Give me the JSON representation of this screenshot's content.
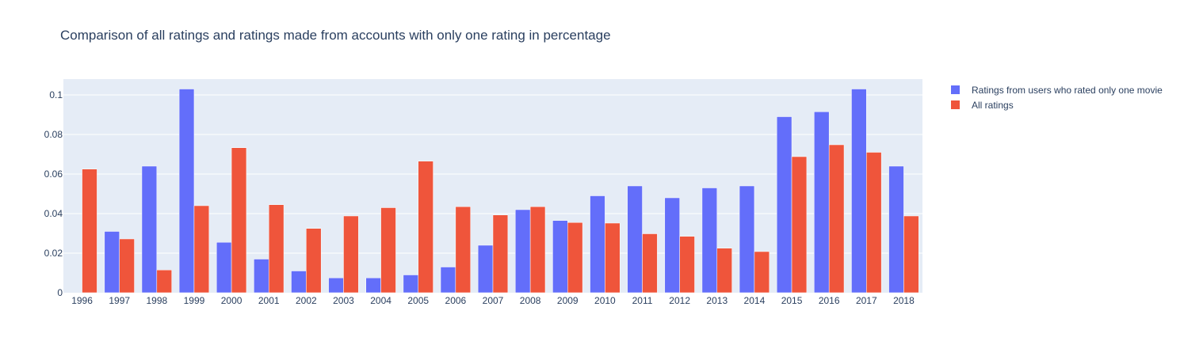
{
  "chart_data": {
    "type": "bar",
    "title": "Comparison of all ratings and ratings made from accounts with only one rating in percentage",
    "xlabel": "",
    "ylabel": "",
    "categories": [
      "1996",
      "1997",
      "1998",
      "1999",
      "2000",
      "2001",
      "2002",
      "2003",
      "2004",
      "2005",
      "2006",
      "2007",
      "2008",
      "2009",
      "2010",
      "2011",
      "2012",
      "2013",
      "2014",
      "2015",
      "2016",
      "2017",
      "2018"
    ],
    "ylim": [
      0,
      0.108
    ],
    "yticks": [
      0,
      0.02,
      0.04,
      0.06,
      0.08,
      0.1
    ],
    "ytick_labels": [
      "0",
      "0.02",
      "0.04",
      "0.06",
      "0.08",
      "0.1"
    ],
    "grid": true,
    "legend_position": "top-right",
    "plot_background": "#e5ecf6",
    "series": [
      {
        "name": "Ratings from users who rated only one movie",
        "color": "#636efa",
        "values": [
          0,
          0.031,
          0.064,
          0.103,
          0.0255,
          0.017,
          0.011,
          0.0075,
          0.0075,
          0.009,
          0.013,
          0.024,
          0.042,
          0.0365,
          0.049,
          0.054,
          0.048,
          0.053,
          0.054,
          0.089,
          0.0915,
          0.103,
          0.064
        ]
      },
      {
        "name": "All ratings",
        "color": "#ef553b",
        "values": [
          0.0625,
          0.0272,
          0.0115,
          0.044,
          0.0733,
          0.0445,
          0.0325,
          0.0388,
          0.043,
          0.0665,
          0.0435,
          0.0393,
          0.0435,
          0.0355,
          0.0352,
          0.0298,
          0.0285,
          0.0225,
          0.0208,
          0.0688,
          0.0748,
          0.071,
          0.0388
        ]
      }
    ]
  }
}
